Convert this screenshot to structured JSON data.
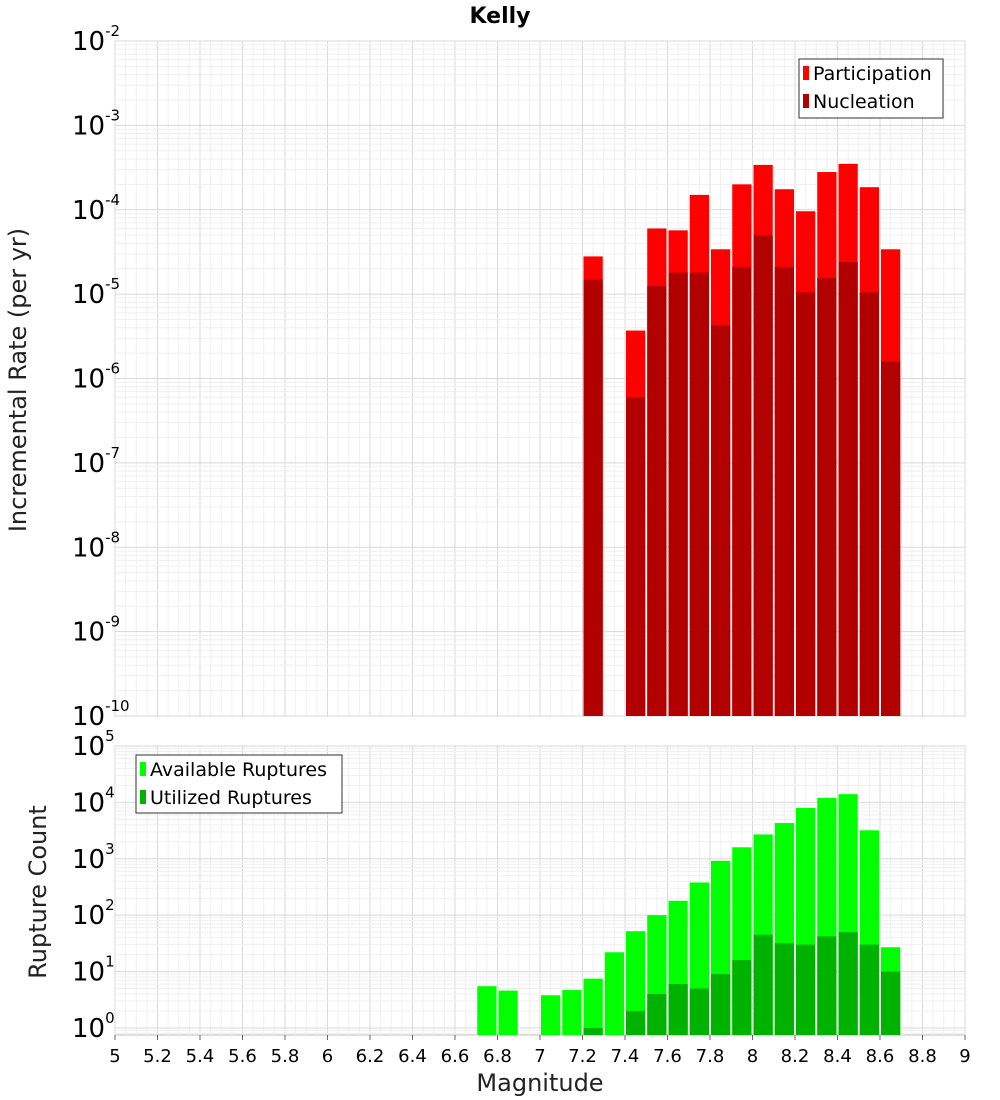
{
  "chart_data": [
    {
      "type": "bar",
      "title": "Kelly",
      "xlabel": "",
      "ylabel": "Incremental Rate (per yr)",
      "yscale": "log",
      "ylim": [
        1e-10,
        0.01
      ],
      "xlim": [
        5,
        9
      ],
      "grid": true,
      "legend_position": "top-right",
      "bar_width": 0.1,
      "series": [
        {
          "name": "Participation",
          "color": "#ff0000",
          "x": [
            7.25,
            7.45,
            7.55,
            7.65,
            7.75,
            7.85,
            7.95,
            8.05,
            8.15,
            8.25,
            8.35,
            8.45,
            8.55,
            8.65
          ],
          "values": [
            2.8e-05,
            3.7e-06,
            6e-05,
            5.7e-05,
            0.00015,
            3.4e-05,
            0.0002,
            0.00034,
            0.000175,
            9.6e-05,
            0.00028,
            0.00035,
            0.000185,
            3.4e-05
          ]
        },
        {
          "name": "Nucleation",
          "color": "#b20000",
          "x": [
            7.25,
            7.45,
            7.55,
            7.65,
            7.75,
            7.85,
            7.95,
            8.05,
            8.15,
            8.25,
            8.35,
            8.45,
            8.55,
            8.65
          ],
          "values": [
            1.5e-05,
            6e-07,
            1.25e-05,
            1.8e-05,
            1.8e-05,
            4.3e-06,
            2.1e-05,
            5e-05,
            2.1e-05,
            1.05e-05,
            1.55e-05,
            2.4e-05,
            1.05e-05,
            1.6e-06
          ]
        }
      ]
    },
    {
      "type": "bar",
      "title": "",
      "xlabel": "Magnitude",
      "ylabel": "Rupture Count",
      "yscale": "log",
      "ylim": [
        0.75,
        100000
      ],
      "xlim": [
        5,
        9
      ],
      "x_ticks": [
        "5",
        "5.2",
        "5.4",
        "5.6",
        "5.8",
        "6",
        "6.2",
        "6.4",
        "6.6",
        "6.8",
        "7",
        "7.2",
        "7.4",
        "7.6",
        "7.8",
        "8",
        "8.2",
        "8.4",
        "8.6",
        "8.8",
        "9"
      ],
      "grid": true,
      "legend_position": "top-left",
      "bar_width": 0.1,
      "series": [
        {
          "name": "Available Ruptures",
          "color": "#00ff00",
          "x": [
            6.75,
            6.85,
            7.05,
            7.15,
            7.25,
            7.35,
            7.45,
            7.55,
            7.65,
            7.75,
            7.85,
            7.95,
            8.05,
            8.15,
            8.25,
            8.35,
            8.45,
            8.55,
            8.65
          ],
          "values": [
            5.5,
            4.6,
            3.8,
            4.7,
            7.5,
            22,
            52,
            100,
            180,
            380,
            920,
            1600,
            2700,
            4300,
            8000,
            12000,
            14000,
            3200,
            27
          ]
        },
        {
          "name": "Utilized Ruptures",
          "color": "#00b200",
          "x": [
            7.25,
            7.45,
            7.55,
            7.65,
            7.75,
            7.85,
            7.95,
            8.05,
            8.15,
            8.25,
            8.35,
            8.45,
            8.55,
            8.65
          ],
          "values": [
            1,
            2,
            4,
            6,
            5,
            9,
            16,
            45,
            32,
            30,
            42,
            50,
            30,
            10
          ]
        }
      ]
    }
  ]
}
